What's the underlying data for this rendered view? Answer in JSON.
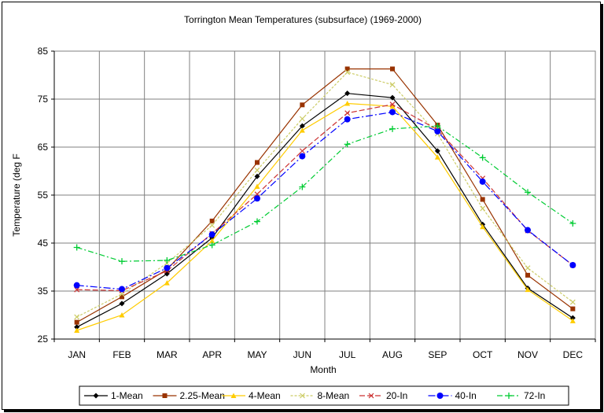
{
  "chart_data": {
    "type": "line",
    "title": "Torrington Mean Temperatures (subsurface) (1969-2000)",
    "xlabel": "Month",
    "ylabel": "Temperature (deg F",
    "categories": [
      "JAN",
      "FEB",
      "MAR",
      "APR",
      "MAY",
      "JUN",
      "JUL",
      "AUG",
      "SEP",
      "OCT",
      "NOV",
      "DEC"
    ],
    "ylim": [
      25,
      85
    ],
    "yticks": [
      25,
      35,
      45,
      55,
      65,
      75,
      85
    ],
    "grid": true,
    "legend_position": "bottom",
    "series": [
      {
        "name": "1-Mean",
        "color": "#000000",
        "marker": "diamond",
        "dash": "",
        "values": [
          27.5,
          32.4,
          38.6,
          46.1,
          58.9,
          69.4,
          76.2,
          75.3,
          64.2,
          48.9,
          35.6,
          29.4
        ]
      },
      {
        "name": "2.25-Mean",
        "color": "#993300",
        "marker": "square",
        "dash": "",
        "values": [
          28.5,
          33.8,
          39.5,
          49.6,
          61.8,
          73.8,
          81.3,
          81.3,
          69.6,
          54.1,
          38.3,
          31.3
        ]
      },
      {
        "name": "4-Mean",
        "color": "#FFCC00",
        "marker": "triangle",
        "dash": "",
        "values": [
          26.8,
          30.0,
          36.7,
          45.5,
          56.8,
          68.5,
          74.1,
          73.5,
          62.9,
          48.4,
          35.3,
          28.8
        ]
      },
      {
        "name": "8-Mean",
        "color": "#CCCC66",
        "marker": "x",
        "dash": "3,2",
        "values": [
          29.6,
          34.4,
          40.8,
          48.7,
          60.2,
          70.9,
          80.6,
          78.0,
          67.8,
          52.2,
          39.8,
          32.7
        ]
      },
      {
        "name": "20-In",
        "color": "#CC3333",
        "marker": "x",
        "dash": "7,3",
        "values": [
          35.3,
          35.1,
          39.2,
          47.0,
          55.2,
          64.2,
          72.1,
          73.9,
          68.6,
          58.5,
          47.6,
          40.4
        ]
      },
      {
        "name": "40-In",
        "color": "#0000FF",
        "marker": "circle",
        "dash": "9,3,2,3",
        "values": [
          36.2,
          35.4,
          39.8,
          46.8,
          54.3,
          63.1,
          70.8,
          72.3,
          68.3,
          57.8,
          47.7,
          40.4
        ]
      },
      {
        "name": "72-In",
        "color": "#00CC33",
        "marker": "plus",
        "dash": "7,3,2,3",
        "values": [
          44.1,
          41.2,
          41.4,
          44.6,
          49.5,
          56.7,
          65.6,
          68.8,
          69.4,
          62.8,
          55.6,
          49.1
        ]
      }
    ]
  }
}
